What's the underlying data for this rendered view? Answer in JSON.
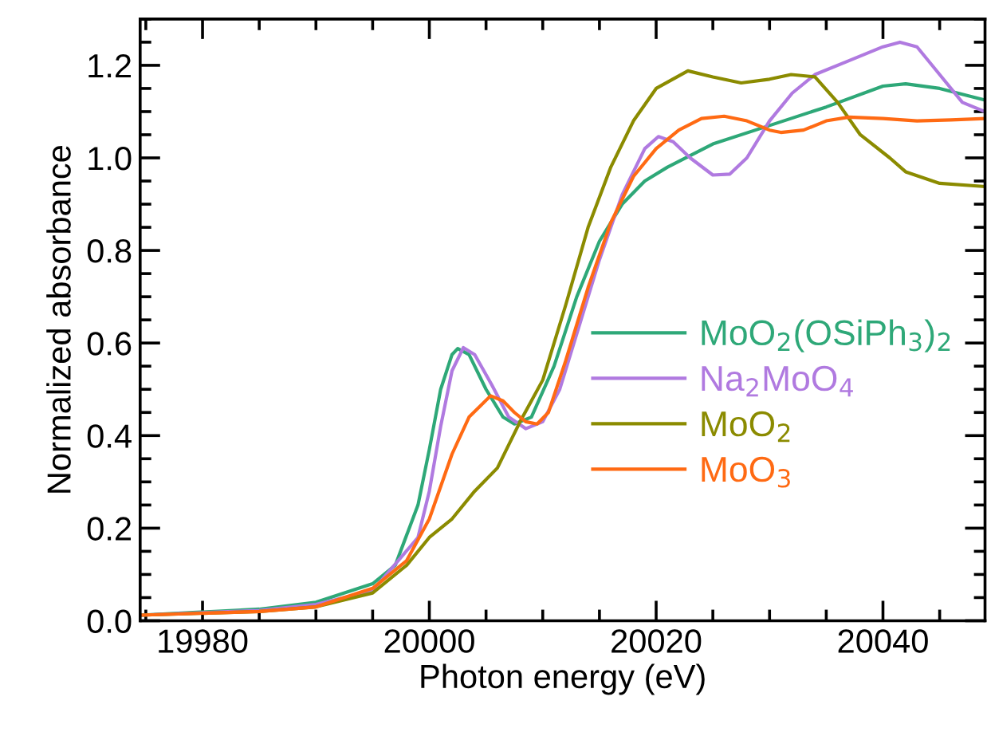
{
  "chart_data": {
    "type": "line",
    "xlabel": "Photon energy (eV)",
    "ylabel": "Normalized absorbance",
    "xlim": [
      19974.5,
      20049
    ],
    "ylim": [
      0,
      1.3
    ],
    "xticks": [
      19980,
      20000,
      20020,
      20040
    ],
    "yticks": [
      {
        "value": 0,
        "label": "0.0"
      },
      {
        "value": 0.2,
        "label": "0.2"
      },
      {
        "value": 0.4,
        "label": "0.4"
      },
      {
        "value": 0.6,
        "label": "0.6"
      },
      {
        "value": 0.8,
        "label": "0.8"
      },
      {
        "value": 1.0,
        "label": "1.0"
      },
      {
        "value": 1.2,
        "label": "1.2"
      }
    ],
    "grid": false,
    "legend": "right",
    "marker": "none",
    "line_style": "solid",
    "series": [
      {
        "name": "MoO$_{2}$(OSiPh$_{3}$)$_{2}$",
        "color": "#2ea878",
        "x": [
          19974.5,
          19985,
          19990,
          19995,
          19997,
          19999,
          20000,
          20001,
          20002,
          20002.5,
          20003.5,
          20005,
          20006.5,
          20007.5,
          20009,
          20011,
          20013,
          20015,
          20017,
          20019,
          20021,
          20025,
          20030,
          20035,
          20040,
          20042,
          20045,
          20049
        ],
        "values": [
          0.012,
          0.025,
          0.04,
          0.08,
          0.12,
          0.25,
          0.37,
          0.5,
          0.575,
          0.588,
          0.575,
          0.5,
          0.44,
          0.425,
          0.44,
          0.55,
          0.7,
          0.82,
          0.9,
          0.95,
          0.98,
          1.03,
          1.07,
          1.11,
          1.155,
          1.16,
          1.15,
          1.125
        ]
      },
      {
        "name": "Na$_{2}$MoO$_{4}$",
        "color": "#b07ae0",
        "x": [
          19974.5,
          19985,
          19990,
          19995,
          19999,
          20000,
          20001,
          20002,
          20003,
          20004,
          20005.5,
          20007,
          20008.5,
          20010,
          20011.5,
          20013,
          20015,
          20017,
          20019,
          20020.2,
          20021.5,
          20023,
          20025,
          20026.5,
          20028,
          20030,
          20032,
          20034,
          20037,
          20040,
          20041.5,
          20043,
          20045,
          20047,
          20049
        ],
        "values": [
          0.012,
          0.022,
          0.035,
          0.065,
          0.18,
          0.28,
          0.42,
          0.54,
          0.59,
          0.575,
          0.51,
          0.44,
          0.415,
          0.43,
          0.5,
          0.62,
          0.78,
          0.92,
          1.02,
          1.046,
          1.035,
          1.0,
          0.963,
          0.965,
          1.0,
          1.08,
          1.14,
          1.18,
          1.21,
          1.24,
          1.25,
          1.24,
          1.18,
          1.12,
          1.1
        ]
      },
      {
        "name": "MoO$_{2}$",
        "color": "#8b8b00",
        "x": [
          19974.5,
          19985,
          19990,
          19995,
          19998,
          20000,
          20002,
          20004,
          20006,
          20008,
          20010,
          20012,
          20014,
          20016,
          20018,
          20020,
          20022.8,
          20025,
          20027.5,
          20030,
          20031.9,
          20034,
          20036,
          20038,
          20040.6,
          20042,
          20045,
          20049
        ],
        "values": [
          0.012,
          0.02,
          0.03,
          0.06,
          0.12,
          0.18,
          0.22,
          0.28,
          0.33,
          0.43,
          0.52,
          0.68,
          0.85,
          0.98,
          1.08,
          1.15,
          1.188,
          1.175,
          1.162,
          1.17,
          1.18,
          1.175,
          1.12,
          1.05,
          1.0,
          0.97,
          0.945,
          0.938
        ]
      },
      {
        "name": "MoO$_{3}$",
        "color": "#ff6a13",
        "x": [
          19974.5,
          19985,
          19990,
          19995,
          19998,
          20000,
          20002,
          20003.5,
          20005.4,
          20006.5,
          20007.5,
          20008.5,
          20009.5,
          20010.5,
          20012,
          20014,
          20016,
          20018,
          20020,
          20022,
          20024,
          20026,
          20028,
          20030,
          20031,
          20033,
          20035,
          20037,
          20040,
          20043,
          20046,
          20049
        ],
        "values": [
          0.012,
          0.02,
          0.03,
          0.07,
          0.13,
          0.22,
          0.36,
          0.44,
          0.486,
          0.475,
          0.45,
          0.43,
          0.425,
          0.45,
          0.56,
          0.72,
          0.86,
          0.96,
          1.02,
          1.06,
          1.085,
          1.09,
          1.08,
          1.06,
          1.055,
          1.06,
          1.08,
          1.088,
          1.085,
          1.08,
          1.082,
          1.085
        ]
      }
    ]
  }
}
